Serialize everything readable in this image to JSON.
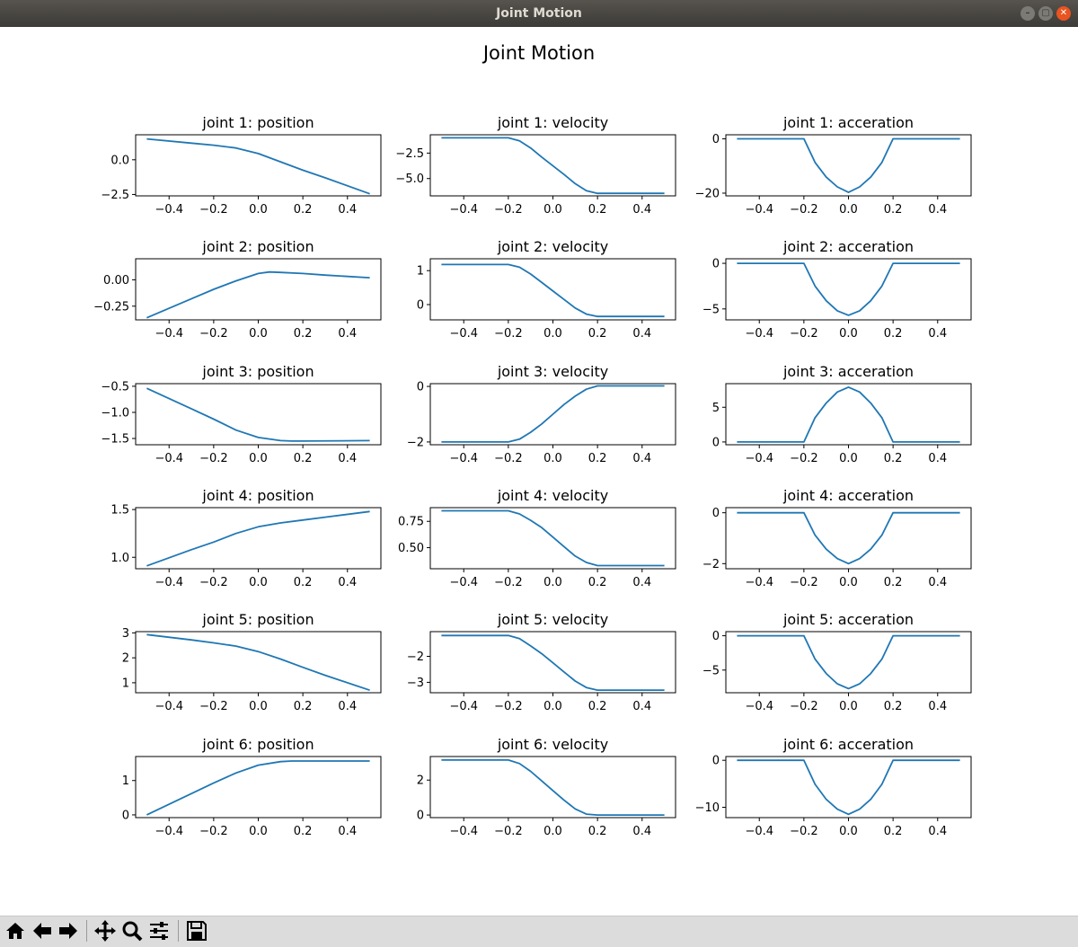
{
  "window": {
    "title": "Joint Motion",
    "buttons": [
      {
        "name": "minimize",
        "glyph": "–"
      },
      {
        "name": "maximize",
        "glyph": "▢"
      },
      {
        "name": "close",
        "glyph": "✕"
      }
    ]
  },
  "figure": {
    "title": "Joint Motion"
  },
  "colors": {
    "line": "#1f77b4",
    "axes": "#000000",
    "close_button": "#e95420"
  },
  "toolbar": {
    "icons": [
      "home-icon",
      "back-arrow-icon",
      "forward-arrow-icon",
      "pan-icon",
      "zoom-icon",
      "configure-subplots-icon",
      "save-icon"
    ]
  },
  "chart_data": [
    {
      "type": "line",
      "title": "joint 1: position",
      "xlim": [
        -0.55,
        0.55
      ],
      "ylim": [
        -2.6,
        1.8
      ],
      "xticks": [
        -0.4,
        -0.2,
        0.0,
        0.2,
        0.4
      ],
      "xtick_labels": [
        "−0.4",
        "−0.2",
        "0.0",
        "0.2",
        "0.4"
      ],
      "yticks": [
        -2.5,
        0.0
      ],
      "ytick_labels": [
        "−2.5",
        "0.0"
      ],
      "x": [
        -0.5,
        -0.3,
        -0.2,
        -0.1,
        0.0,
        0.1,
        0.2,
        0.3,
        0.5
      ],
      "y": [
        1.5,
        1.2,
        1.05,
        0.85,
        0.45,
        -0.15,
        -0.75,
        -1.3,
        -2.45
      ]
    },
    {
      "type": "line",
      "title": "joint 1: velocity",
      "xlim": [
        -0.55,
        0.55
      ],
      "ylim": [
        -6.7,
        -0.7
      ],
      "xticks": [
        -0.4,
        -0.2,
        0.0,
        0.2,
        0.4
      ],
      "xtick_labels": [
        "−0.4",
        "−0.2",
        "0.0",
        "0.2",
        "0.4"
      ],
      "yticks": [
        -2.5,
        -5.0
      ],
      "ytick_labels": [
        "−2.5",
        "−5.0"
      ],
      "x": [
        -0.5,
        -0.2,
        -0.15,
        -0.1,
        -0.05,
        0.0,
        0.05,
        0.1,
        0.15,
        0.2,
        0.5
      ],
      "y": [
        -1.0,
        -1.0,
        -1.3,
        -2.0,
        -2.9,
        -3.75,
        -4.6,
        -5.5,
        -6.2,
        -6.45,
        -6.45
      ]
    },
    {
      "type": "line",
      "title": "joint 1: acceration",
      "xlim": [
        -0.55,
        0.55
      ],
      "ylim": [
        -21,
        1.5
      ],
      "xticks": [
        -0.4,
        -0.2,
        0.0,
        0.2,
        0.4
      ],
      "xtick_labels": [
        "−0.4",
        "−0.2",
        "0.0",
        "0.2",
        "0.4"
      ],
      "yticks": [
        0,
        -20
      ],
      "ytick_labels": [
        "0",
        "−20"
      ],
      "x": [
        -0.5,
        -0.2,
        -0.15,
        -0.1,
        -0.05,
        0.0,
        0.05,
        0.1,
        0.15,
        0.2,
        0.5
      ],
      "y": [
        0,
        0,
        -8.7,
        -14.1,
        -17.7,
        -19.7,
        -17.7,
        -14.1,
        -8.7,
        0,
        0
      ]
    },
    {
      "type": "line",
      "title": "joint 2: position",
      "xlim": [
        -0.55,
        0.55
      ],
      "ylim": [
        -0.38,
        0.2
      ],
      "xticks": [
        -0.4,
        -0.2,
        0.0,
        0.2,
        0.4
      ],
      "xtick_labels": [
        "−0.4",
        "−0.2",
        "0.0",
        "0.2",
        "0.4"
      ],
      "yticks": [
        0.0,
        -0.25
      ],
      "ytick_labels": [
        "0.00",
        "−0.25"
      ],
      "x": [
        -0.5,
        -0.3,
        -0.2,
        -0.1,
        0.0,
        0.05,
        0.1,
        0.2,
        0.3,
        0.5
      ],
      "y": [
        -0.36,
        -0.18,
        -0.09,
        -0.01,
        0.06,
        0.075,
        0.07,
        0.06,
        0.045,
        0.02
      ]
    },
    {
      "type": "line",
      "title": "joint 2: velocity",
      "xlim": [
        -0.55,
        0.55
      ],
      "ylim": [
        -0.45,
        1.35
      ],
      "xticks": [
        -0.4,
        -0.2,
        0.0,
        0.2,
        0.4
      ],
      "xtick_labels": [
        "−0.4",
        "−0.2",
        "0.0",
        "0.2",
        "0.4"
      ],
      "yticks": [
        1,
        0
      ],
      "ytick_labels": [
        "1",
        "0"
      ],
      "x": [
        -0.5,
        -0.2,
        -0.15,
        -0.1,
        -0.05,
        0.0,
        0.05,
        0.1,
        0.15,
        0.2,
        0.5
      ],
      "y": [
        1.18,
        1.18,
        1.1,
        0.9,
        0.65,
        0.4,
        0.15,
        -0.1,
        -0.28,
        -0.35,
        -0.35
      ]
    },
    {
      "type": "line",
      "title": "joint 2: acceration",
      "xlim": [
        -0.55,
        0.55
      ],
      "ylim": [
        -6.2,
        0.5
      ],
      "xticks": [
        -0.4,
        -0.2,
        0.0,
        0.2,
        0.4
      ],
      "xtick_labels": [
        "−0.4",
        "−0.2",
        "0.0",
        "0.2",
        "0.4"
      ],
      "yticks": [
        0,
        -5
      ],
      "ytick_labels": [
        "0",
        "−5"
      ],
      "x": [
        -0.5,
        -0.2,
        -0.15,
        -0.1,
        -0.05,
        0.0,
        0.05,
        0.1,
        0.15,
        0.2,
        0.5
      ],
      "y": [
        0,
        0,
        -2.5,
        -4.1,
        -5.2,
        -5.7,
        -5.2,
        -4.1,
        -2.5,
        0,
        0
      ]
    },
    {
      "type": "line",
      "title": "joint 3: position",
      "xlim": [
        -0.55,
        0.55
      ],
      "ylim": [
        -1.62,
        -0.45
      ],
      "xticks": [
        -0.4,
        -0.2,
        0.0,
        0.2,
        0.4
      ],
      "xtick_labels": [
        "−0.4",
        "−0.2",
        "0.0",
        "0.2",
        "0.4"
      ],
      "yticks": [
        -0.5,
        -1.0,
        -1.5
      ],
      "ytick_labels": [
        "−0.5",
        "−1.0",
        "−1.5"
      ],
      "x": [
        -0.5,
        -0.3,
        -0.2,
        -0.1,
        0.0,
        0.1,
        0.15,
        0.2,
        0.5
      ],
      "y": [
        -0.54,
        -0.93,
        -1.13,
        -1.34,
        -1.48,
        -1.54,
        -1.55,
        -1.55,
        -1.54
      ]
    },
    {
      "type": "line",
      "title": "joint 3: velocity",
      "xlim": [
        -0.55,
        0.55
      ],
      "ylim": [
        -2.1,
        0.1
      ],
      "xticks": [
        -0.4,
        -0.2,
        0.0,
        0.2,
        0.4
      ],
      "xtick_labels": [
        "−0.4",
        "−0.2",
        "0.0",
        "0.2",
        "0.4"
      ],
      "yticks": [
        0,
        -2
      ],
      "ytick_labels": [
        "0",
        "−2"
      ],
      "x": [
        -0.5,
        -0.2,
        -0.15,
        -0.1,
        -0.05,
        0.0,
        0.05,
        0.1,
        0.15,
        0.2,
        0.5
      ],
      "y": [
        -2.0,
        -2.0,
        -1.9,
        -1.65,
        -1.35,
        -1.0,
        -0.65,
        -0.35,
        -0.1,
        0.02,
        0.02
      ]
    },
    {
      "type": "line",
      "title": "joint 3: acceration",
      "xlim": [
        -0.55,
        0.55
      ],
      "ylim": [
        -0.4,
        8.4
      ],
      "xticks": [
        -0.4,
        -0.2,
        0.0,
        0.2,
        0.4
      ],
      "xtick_labels": [
        "−0.4",
        "−0.2",
        "0.0",
        "0.2",
        "0.4"
      ],
      "yticks": [
        5,
        0
      ],
      "ytick_labels": [
        "5",
        "0"
      ],
      "x": [
        -0.5,
        -0.2,
        -0.15,
        -0.1,
        -0.05,
        0.0,
        0.05,
        0.1,
        0.15,
        0.2,
        0.5
      ],
      "y": [
        0,
        0,
        3.5,
        5.6,
        7.2,
        7.9,
        7.2,
        5.6,
        3.5,
        0,
        0
      ]
    },
    {
      "type": "line",
      "title": "joint 4: position",
      "xlim": [
        -0.55,
        0.55
      ],
      "ylim": [
        0.88,
        1.52
      ],
      "xticks": [
        -0.4,
        -0.2,
        0.0,
        0.2,
        0.4
      ],
      "xtick_labels": [
        "−0.4",
        "−0.2",
        "0.0",
        "0.2",
        "0.4"
      ],
      "yticks": [
        1.5,
        1.0
      ],
      "ytick_labels": [
        "1.5",
        "1.0"
      ],
      "x": [
        -0.5,
        -0.3,
        -0.2,
        -0.1,
        0.0,
        0.1,
        0.2,
        0.3,
        0.5
      ],
      "y": [
        0.91,
        1.08,
        1.16,
        1.25,
        1.32,
        1.36,
        1.39,
        1.42,
        1.48
      ]
    },
    {
      "type": "line",
      "title": "joint 4: velocity",
      "xlim": [
        -0.55,
        0.55
      ],
      "ylim": [
        0.3,
        0.88
      ],
      "xticks": [
        -0.4,
        -0.2,
        0.0,
        0.2,
        0.4
      ],
      "xtick_labels": [
        "−0.4",
        "−0.2",
        "0.0",
        "0.2",
        "0.4"
      ],
      "yticks": [
        0.75,
        0.5
      ],
      "ytick_labels": [
        "0.75",
        "0.50"
      ],
      "x": [
        -0.5,
        -0.2,
        -0.15,
        -0.1,
        -0.05,
        0.0,
        0.05,
        0.1,
        0.15,
        0.2,
        0.5
      ],
      "y": [
        0.85,
        0.85,
        0.82,
        0.76,
        0.69,
        0.6,
        0.51,
        0.42,
        0.36,
        0.33,
        0.33
      ]
    },
    {
      "type": "line",
      "title": "joint 4: acceration",
      "xlim": [
        -0.55,
        0.55
      ],
      "ylim": [
        -2.2,
        0.2
      ],
      "xticks": [
        -0.4,
        -0.2,
        0.0,
        0.2,
        0.4
      ],
      "xtick_labels": [
        "−0.4",
        "−0.2",
        "0.0",
        "0.2",
        "0.4"
      ],
      "yticks": [
        0,
        -2
      ],
      "ytick_labels": [
        "0",
        "−2"
      ],
      "x": [
        -0.5,
        -0.2,
        -0.15,
        -0.1,
        -0.05,
        0.0,
        0.05,
        0.1,
        0.15,
        0.2,
        0.5
      ],
      "y": [
        0,
        0,
        -0.88,
        -1.43,
        -1.8,
        -2.0,
        -1.8,
        -1.43,
        -0.88,
        0,
        0
      ]
    },
    {
      "type": "line",
      "title": "joint 5: position",
      "xlim": [
        -0.55,
        0.55
      ],
      "ylim": [
        0.6,
        3.05
      ],
      "xticks": [
        -0.4,
        -0.2,
        0.0,
        0.2,
        0.4
      ],
      "xtick_labels": [
        "−0.4",
        "−0.2",
        "0.0",
        "0.2",
        "0.4"
      ],
      "yticks": [
        3,
        2,
        1
      ],
      "ytick_labels": [
        "3",
        "2",
        "1"
      ],
      "x": [
        -0.5,
        -0.3,
        -0.2,
        -0.1,
        0.0,
        0.1,
        0.2,
        0.3,
        0.5
      ],
      "y": [
        2.93,
        2.72,
        2.6,
        2.47,
        2.25,
        1.95,
        1.62,
        1.3,
        0.7
      ]
    },
    {
      "type": "line",
      "title": "joint 5: velocity",
      "xlim": [
        -0.55,
        0.55
      ],
      "ylim": [
        -3.4,
        -1.05
      ],
      "xticks": [
        -0.4,
        -0.2,
        0.0,
        0.2,
        0.4
      ],
      "xtick_labels": [
        "−0.4",
        "−0.2",
        "0.0",
        "0.2",
        "0.4"
      ],
      "yticks": [
        -2,
        -3
      ],
      "ytick_labels": [
        "−2",
        "−3"
      ],
      "x": [
        -0.5,
        -0.2,
        -0.15,
        -0.1,
        -0.05,
        0.0,
        0.05,
        0.1,
        0.15,
        0.2,
        0.5
      ],
      "y": [
        -1.2,
        -1.2,
        -1.32,
        -1.6,
        -1.9,
        -2.25,
        -2.6,
        -2.95,
        -3.2,
        -3.3,
        -3.3
      ]
    },
    {
      "type": "line",
      "title": "joint 5: acceration",
      "xlim": [
        -0.55,
        0.55
      ],
      "ylim": [
        -8.3,
        0.6
      ],
      "xticks": [
        -0.4,
        -0.2,
        0.0,
        0.2,
        0.4
      ],
      "xtick_labels": [
        "−0.4",
        "−0.2",
        "0.0",
        "0.2",
        "0.4"
      ],
      "yticks": [
        0,
        -5
      ],
      "ytick_labels": [
        "0",
        "−5"
      ],
      "x": [
        -0.5,
        -0.2,
        -0.15,
        -0.1,
        -0.05,
        0.0,
        0.05,
        0.1,
        0.15,
        0.2,
        0.5
      ],
      "y": [
        0,
        0,
        -3.4,
        -5.5,
        -7.0,
        -7.7,
        -7.0,
        -5.5,
        -3.4,
        0,
        0
      ]
    },
    {
      "type": "line",
      "title": "joint 6: position",
      "xlim": [
        -0.55,
        0.55
      ],
      "ylim": [
        -0.08,
        1.7
      ],
      "xticks": [
        -0.4,
        -0.2,
        0.0,
        0.2,
        0.4
      ],
      "xtick_labels": [
        "−0.4",
        "−0.2",
        "0.0",
        "0.2",
        "0.4"
      ],
      "yticks": [
        1,
        0
      ],
      "ytick_labels": [
        "1",
        "0"
      ],
      "x": [
        -0.5,
        -0.3,
        -0.2,
        -0.1,
        0.0,
        0.1,
        0.15,
        0.2,
        0.5
      ],
      "y": [
        0.0,
        0.62,
        0.93,
        1.22,
        1.45,
        1.55,
        1.57,
        1.57,
        1.57
      ]
    },
    {
      "type": "line",
      "title": "joint 6: velocity",
      "xlim": [
        -0.55,
        0.55
      ],
      "ylim": [
        -0.15,
        3.35
      ],
      "xticks": [
        -0.4,
        -0.2,
        0.0,
        0.2,
        0.4
      ],
      "xtick_labels": [
        "−0.4",
        "−0.2",
        "0.0",
        "0.2",
        "0.4"
      ],
      "yticks": [
        2,
        0
      ],
      "ytick_labels": [
        "2",
        "0"
      ],
      "x": [
        -0.5,
        -0.2,
        -0.15,
        -0.1,
        -0.05,
        0.0,
        0.05,
        0.1,
        0.15,
        0.2,
        0.5
      ],
      "y": [
        3.15,
        3.15,
        2.95,
        2.5,
        1.95,
        1.4,
        0.85,
        0.35,
        0.05,
        0.0,
        0.0
      ]
    },
    {
      "type": "line",
      "title": "joint 6: acceration",
      "xlim": [
        -0.55,
        0.55
      ],
      "ylim": [
        -12.2,
        0.8
      ],
      "xticks": [
        -0.4,
        -0.2,
        0.0,
        0.2,
        0.4
      ],
      "xtick_labels": [
        "−0.4",
        "−0.2",
        "0.0",
        "0.2",
        "0.4"
      ],
      "yticks": [
        0,
        -10
      ],
      "ytick_labels": [
        "0",
        "−10"
      ],
      "x": [
        -0.5,
        -0.2,
        -0.15,
        -0.1,
        -0.05,
        0.0,
        0.05,
        0.1,
        0.15,
        0.2,
        0.5
      ],
      "y": [
        0,
        0,
        -5.1,
        -8.3,
        -10.4,
        -11.5,
        -10.4,
        -8.3,
        -5.1,
        0,
        0
      ]
    }
  ]
}
